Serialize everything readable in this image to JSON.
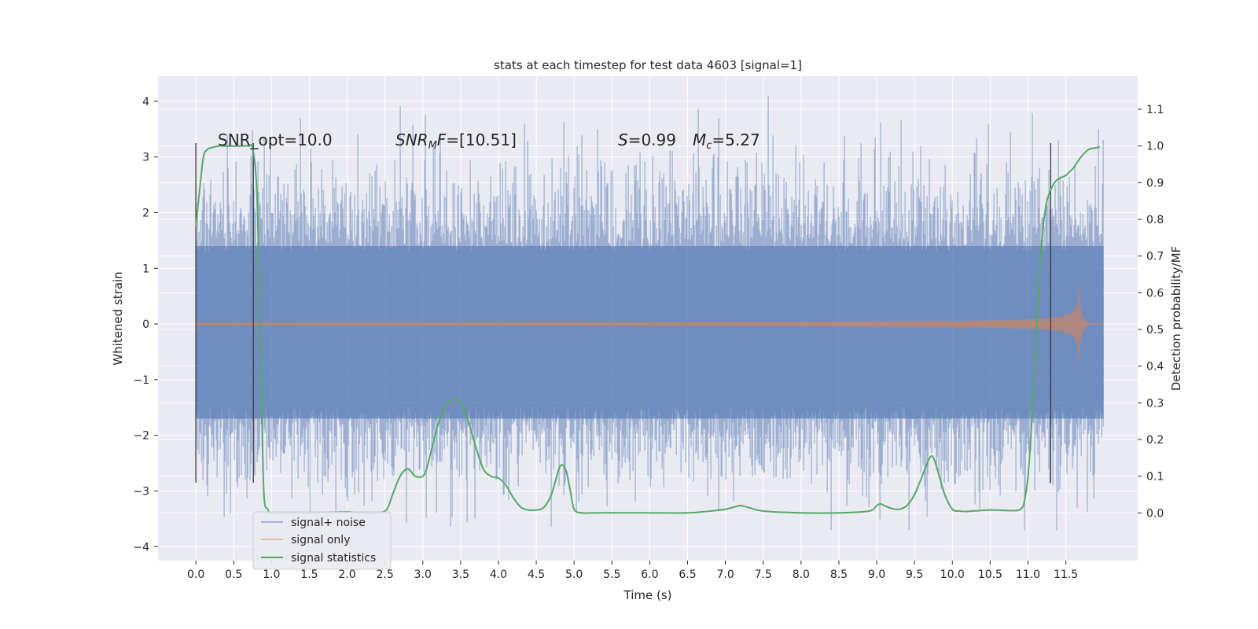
{
  "chart_data": {
    "type": "line",
    "title": "stats at each timestep for test data 4603 [signal=1]",
    "xlabel": "Time (s)",
    "ylabel_left": "Whitened strain",
    "ylabel_right": "Detection probability/MF",
    "xlim": [
      -0.5,
      12.45
    ],
    "ylim_left": [
      -4.25,
      4.45
    ],
    "ylim_right": [
      -0.13,
      1.19
    ],
    "x_ticks": [
      "0.0",
      "0.5",
      "1.0",
      "1.5",
      "2.0",
      "2.5",
      "3.0",
      "3.5",
      "4.0",
      "4.5",
      "5.0",
      "5.5",
      "6.0",
      "6.5",
      "7.0",
      "7.5",
      "8.0",
      "8.5",
      "9.0",
      "9.5",
      "10.0",
      "10.5",
      "11.0",
      "11.5"
    ],
    "y_ticks_left": [
      "4",
      "3",
      "2",
      "1",
      "0",
      "−1",
      "−2",
      "−3",
      "−4"
    ],
    "y_ticks_right": [
      "1.1",
      "1.0",
      "0.9",
      "0.8",
      "0.7",
      "0.6",
      "0.5",
      "0.4",
      "0.3",
      "0.2",
      "0.1",
      "0.0"
    ],
    "annotations": {
      "snr_opt": "SNR_opt=10.0",
      "snr_mf_sym": "SNR",
      "snr_mf_sub": "M",
      "snr_mf_sym2": "F",
      "snr_mf_val": "=[10.51]",
      "s_sym": "S",
      "s_val": "=0.99",
      "mc_sym": "M",
      "mc_sub": "c",
      "mc_val": "=5.27"
    },
    "grid": true,
    "legend_position": "lower-left",
    "series": [
      {
        "name": "signal+ noise",
        "color": "#4c72b0",
        "kind": "noise-band",
        "x_range": [
          0,
          12.0
        ],
        "band": [
          -1.7,
          1.4
        ],
        "spike_range": [
          -3.7,
          4.1
        ]
      },
      {
        "name": "signal only",
        "color": "#dd8452",
        "kind": "chirp",
        "x_range": [
          0,
          12.0
        ],
        "merger_time": 11.65,
        "peak_amplitude": 1.0
      },
      {
        "name": "signal statistics",
        "color": "#55a868",
        "kind": "line",
        "x": [
          0.0,
          0.05,
          0.1,
          0.15,
          0.2,
          0.3,
          0.4,
          0.5,
          0.6,
          0.7,
          0.75,
          0.8,
          0.83,
          0.87,
          0.9,
          0.95,
          1.0,
          1.2,
          1.5,
          1.8,
          2.0,
          2.2,
          2.4,
          2.5,
          2.55,
          2.6,
          2.7,
          2.8,
          2.9,
          3.0,
          3.05,
          3.1,
          3.2,
          3.3,
          3.4,
          3.5,
          3.6,
          3.7,
          3.8,
          3.9,
          4.0,
          4.1,
          4.2,
          4.3,
          4.4,
          4.5,
          4.6,
          4.7,
          4.8,
          4.85,
          4.9,
          4.95,
          5.0,
          5.1,
          5.3,
          6.0,
          6.5,
          6.8,
          7.0,
          7.1,
          7.2,
          7.3,
          7.5,
          8.0,
          8.5,
          8.9,
          9.0,
          9.05,
          9.1,
          9.2,
          9.3,
          9.4,
          9.5,
          9.6,
          9.7,
          9.75,
          9.8,
          9.9,
          10.0,
          10.1,
          10.2,
          10.5,
          10.8,
          10.9,
          10.95,
          11.0,
          11.05,
          11.1,
          11.15,
          11.2,
          11.25,
          11.3,
          11.35,
          11.4,
          11.5,
          11.55,
          11.6,
          11.7,
          11.8,
          11.9,
          11.95
        ],
        "y": [
          0.78,
          0.88,
          0.97,
          0.99,
          0.995,
          1.0,
          1.0,
          1.0,
          1.0,
          1.0,
          0.995,
          0.9,
          0.7,
          0.3,
          0.05,
          0.01,
          0.0,
          0.0,
          0.0,
          0.002,
          0.003,
          0.0,
          0.0,
          0.005,
          0.02,
          0.05,
          0.1,
          0.12,
          0.1,
          0.1,
          0.12,
          0.16,
          0.24,
          0.29,
          0.31,
          0.3,
          0.25,
          0.18,
          0.12,
          0.1,
          0.095,
          0.075,
          0.04,
          0.015,
          0.008,
          0.008,
          0.015,
          0.05,
          0.12,
          0.13,
          0.11,
          0.06,
          0.01,
          0.0,
          0.0,
          0.0,
          0.0,
          0.005,
          0.01,
          0.015,
          0.02,
          0.015,
          0.005,
          0.0,
          0.0,
          0.005,
          0.02,
          0.025,
          0.02,
          0.012,
          0.01,
          0.02,
          0.05,
          0.1,
          0.15,
          0.15,
          0.12,
          0.05,
          0.01,
          0.005,
          0.004,
          0.008,
          0.006,
          0.01,
          0.03,
          0.1,
          0.25,
          0.45,
          0.65,
          0.78,
          0.85,
          0.88,
          0.9,
          0.91,
          0.92,
          0.93,
          0.94,
          0.97,
          0.99,
          0.995,
          0.998
        ]
      }
    ],
    "vertical_markers": [
      0.0,
      0.76,
      11.3
    ]
  }
}
